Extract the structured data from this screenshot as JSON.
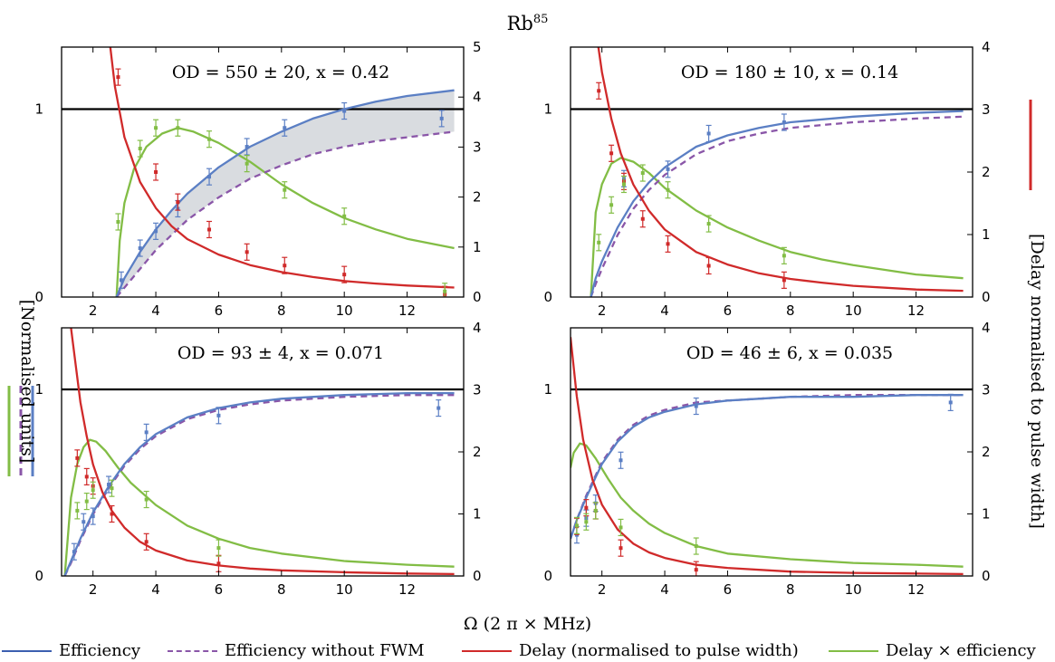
{
  "title": "Rb",
  "title_sup": "85",
  "xlabel": "Ω (2 π × MHz)",
  "ylabel_left": "[Normalised units]",
  "ylabel_right": "[Delay normalised to pulse width]",
  "colors": {
    "efficiency": "#5b7fc4",
    "efficiency_no_fwm": "#8a56a8",
    "delay": "#d02a2a",
    "delay_x_eff": "#82bd45",
    "shade": "#d9dce0",
    "unity": "#000000"
  },
  "legend": [
    {
      "key": "efficiency",
      "label": "Efficiency",
      "style": "solid"
    },
    {
      "key": "efficiency_no_fwm",
      "label": "Efficiency without FWM",
      "style": "dashed"
    },
    {
      "key": "delay",
      "label": "Delay (normalised to pulse width)",
      "style": "solid"
    },
    {
      "key": "delay_x_eff",
      "label": "Delay × efficiency",
      "style": "solid"
    }
  ],
  "chart_data": [
    {
      "type": "line",
      "panel": "top-left",
      "annotation": "OD = 550 ± 20, x = 0.42",
      "xlim": [
        1,
        13.8
      ],
      "ylim_left": [
        0,
        1.33
      ],
      "ylim_right": [
        0,
        5
      ],
      "xticks": [
        2,
        4,
        6,
        8,
        10,
        12
      ],
      "yticks_left": [
        0,
        1
      ],
      "yticks_right": [
        0,
        1,
        2,
        3,
        4,
        5
      ],
      "curves": {
        "efficiency": {
          "x": [
            2.75,
            3.0,
            3.5,
            4.0,
            4.5,
            5.0,
            6.0,
            7.0,
            8.0,
            9.0,
            10.0,
            11.0,
            12.0,
            13.5
          ],
          "y": [
            0.0,
            0.1,
            0.24,
            0.36,
            0.46,
            0.55,
            0.69,
            0.8,
            0.88,
            0.95,
            1.0,
            1.04,
            1.07,
            1.1
          ]
        },
        "efficiency_no_fwm": {
          "x": [
            2.75,
            3.0,
            3.5,
            4.0,
            5.0,
            6.0,
            7.0,
            8.0,
            9.0,
            10.0,
            11.0,
            12.0,
            13.5
          ],
          "y": [
            0.0,
            0.05,
            0.15,
            0.25,
            0.41,
            0.53,
            0.63,
            0.7,
            0.76,
            0.8,
            0.83,
            0.85,
            0.88
          ]
        },
        "delay": {
          "x": [
            2.55,
            2.7,
            3.0,
            3.5,
            4.0,
            4.5,
            5.0,
            6.0,
            7.0,
            8.0,
            9.0,
            10.0,
            11.0,
            12.0,
            13.5
          ],
          "y": [
            5.0,
            4.2,
            3.2,
            2.3,
            1.78,
            1.42,
            1.16,
            0.85,
            0.64,
            0.5,
            0.4,
            0.32,
            0.27,
            0.23,
            0.19
          ]
        },
        "delay_x_eff": {
          "x": [
            2.75,
            2.85,
            3.0,
            3.3,
            3.7,
            4.2,
            4.7,
            5.2,
            6.0,
            7.0,
            8.0,
            9.0,
            10.0,
            11.0,
            12.0,
            13.5
          ],
          "y": [
            0.0,
            0.3,
            0.5,
            0.68,
            0.8,
            0.87,
            0.9,
            0.88,
            0.82,
            0.72,
            0.6,
            0.5,
            0.42,
            0.36,
            0.31,
            0.26
          ]
        }
      },
      "points": {
        "efficiency": {
          "x": [
            2.9,
            3.5,
            4.0,
            4.7,
            5.7,
            6.9,
            8.1,
            10.0,
            13.1
          ],
          "y": [
            0.09,
            0.26,
            0.35,
            0.47,
            0.64,
            0.8,
            0.9,
            0.99,
            0.95
          ]
        },
        "delay": {
          "x": [
            2.8,
            4.0,
            4.7,
            5.7,
            6.9,
            8.1,
            10.0,
            13.2
          ],
          "y": [
            4.4,
            2.5,
            1.9,
            1.35,
            0.9,
            0.63,
            0.45,
            0.05
          ]
        },
        "delay_x_eff": {
          "x": [
            2.8,
            3.5,
            4.0,
            4.7,
            5.7,
            6.9,
            8.1,
            10.0,
            13.2
          ],
          "y": [
            0.4,
            0.79,
            0.9,
            0.9,
            0.84,
            0.71,
            0.57,
            0.43,
            0.03
          ]
        }
      }
    },
    {
      "type": "line",
      "panel": "top-right",
      "annotation": "OD = 180 ± 10, x = 0.14",
      "xlim": [
        1,
        13.8
      ],
      "ylim_left": [
        0,
        1.33
      ],
      "ylim_right": [
        0,
        4
      ],
      "xticks": [
        2,
        4,
        6,
        8,
        10,
        12
      ],
      "yticks_left": [
        0,
        1
      ],
      "yticks_right": [
        0,
        1,
        2,
        3,
        4
      ],
      "curves": {
        "efficiency": {
          "x": [
            1.65,
            1.8,
            2.0,
            2.5,
            3.0,
            3.5,
            4.0,
            5.0,
            6.0,
            7.0,
            8.0,
            10.0,
            12.0,
            13.5
          ],
          "y": [
            0.0,
            0.1,
            0.19,
            0.37,
            0.51,
            0.61,
            0.69,
            0.8,
            0.86,
            0.9,
            0.93,
            0.96,
            0.98,
            0.99
          ]
        },
        "efficiency_no_fwm": {
          "x": [
            1.65,
            1.8,
            2.0,
            2.5,
            3.0,
            3.5,
            4.0,
            5.0,
            6.0,
            7.0,
            8.0,
            10.0,
            12.0,
            13.5
          ],
          "y": [
            0.0,
            0.07,
            0.15,
            0.33,
            0.47,
            0.57,
            0.65,
            0.76,
            0.83,
            0.87,
            0.9,
            0.93,
            0.95,
            0.96
          ]
        },
        "delay": {
          "x": [
            1.8,
            2.0,
            2.3,
            2.6,
            3.0,
            3.5,
            4.0,
            5.0,
            6.0,
            7.0,
            8.0,
            9.0,
            10.0,
            12.0,
            13.5
          ],
          "y": [
            4.3,
            3.6,
            2.85,
            2.3,
            1.8,
            1.38,
            1.08,
            0.72,
            0.52,
            0.38,
            0.29,
            0.23,
            0.18,
            0.12,
            0.1
          ]
        },
        "delay_x_eff": {
          "x": [
            1.65,
            1.8,
            2.0,
            2.3,
            2.6,
            3.0,
            3.5,
            4.0,
            5.0,
            6.0,
            7.0,
            8.0,
            9.0,
            10.0,
            12.0,
            13.5
          ],
          "y": [
            0.0,
            0.45,
            0.6,
            0.71,
            0.74,
            0.72,
            0.66,
            0.58,
            0.46,
            0.37,
            0.3,
            0.24,
            0.2,
            0.17,
            0.12,
            0.1
          ]
        }
      },
      "points": {
        "efficiency": {
          "x": [
            2.7,
            4.1,
            5.4,
            7.8
          ],
          "y": [
            0.63,
            0.68,
            0.87,
            0.93
          ]
        },
        "delay": {
          "x": [
            1.9,
            2.3,
            2.7,
            3.3,
            4.1,
            5.4,
            7.8
          ],
          "y": [
            3.3,
            2.3,
            1.85,
            1.25,
            0.85,
            0.5,
            0.27
          ]
        },
        "delay_x_eff": {
          "x": [
            1.9,
            2.3,
            2.7,
            3.3,
            4.1,
            5.4,
            7.8
          ],
          "y": [
            0.29,
            0.49,
            0.6,
            0.66,
            0.57,
            0.39,
            0.22
          ]
        }
      }
    },
    {
      "type": "line",
      "panel": "bottom-left",
      "annotation": "OD = 93 ± 4, x = 0.071",
      "xlim": [
        1,
        13.8
      ],
      "ylim_left": [
        0,
        1.33
      ],
      "ylim_right": [
        0,
        4
      ],
      "xticks": [
        2,
        4,
        6,
        8,
        10,
        12
      ],
      "yticks_left": [
        0,
        1
      ],
      "yticks_right": [
        0,
        1,
        2,
        3,
        4
      ],
      "curves": {
        "efficiency": {
          "x": [
            1.1,
            1.3,
            1.6,
            2.0,
            2.5,
            3.0,
            3.5,
            4.0,
            5.0,
            6.0,
            7.0,
            8.0,
            10.0,
            12.0,
            13.5
          ],
          "y": [
            0.0,
            0.08,
            0.2,
            0.34,
            0.48,
            0.6,
            0.69,
            0.76,
            0.85,
            0.9,
            0.93,
            0.95,
            0.97,
            0.98,
            0.98
          ]
        },
        "efficiency_no_fwm": {
          "x": [
            1.1,
            1.3,
            1.6,
            2.0,
            2.5,
            3.0,
            3.5,
            4.0,
            5.0,
            6.0,
            7.0,
            8.0,
            10.0,
            12.0,
            13.5
          ],
          "y": [
            0.0,
            0.07,
            0.19,
            0.33,
            0.47,
            0.59,
            0.68,
            0.75,
            0.84,
            0.89,
            0.92,
            0.94,
            0.96,
            0.97,
            0.97
          ]
        },
        "delay": {
          "x": [
            1.3,
            1.45,
            1.6,
            1.8,
            2.0,
            2.3,
            2.6,
            3.0,
            3.5,
            4.0,
            5.0,
            6.0,
            7.0,
            8.0,
            10.0,
            12.0,
            13.5
          ],
          "y": [
            4.0,
            3.4,
            2.8,
            2.25,
            1.8,
            1.35,
            1.05,
            0.78,
            0.55,
            0.41,
            0.25,
            0.17,
            0.12,
            0.09,
            0.06,
            0.04,
            0.03
          ]
        },
        "delay_x_eff": {
          "x": [
            1.1,
            1.3,
            1.5,
            1.7,
            1.9,
            2.1,
            2.4,
            2.8,
            3.2,
            4.0,
            5.0,
            6.0,
            7.0,
            8.0,
            10.0,
            12.0,
            13.5
          ],
          "y": [
            0.0,
            0.42,
            0.6,
            0.69,
            0.73,
            0.72,
            0.67,
            0.58,
            0.5,
            0.38,
            0.27,
            0.2,
            0.15,
            0.12,
            0.08,
            0.06,
            0.05
          ]
        }
      },
      "points": {
        "efficiency": {
          "x": [
            1.4,
            1.7,
            2.0,
            2.5,
            3.7,
            6.0,
            13.0
          ],
          "y": [
            0.13,
            0.29,
            0.32,
            0.49,
            0.77,
            0.86,
            0.9
          ]
        },
        "delay": {
          "x": [
            1.5,
            1.8,
            2.0,
            2.6,
            3.7,
            6.0
          ],
          "y": [
            1.9,
            1.6,
            1.45,
            1.0,
            0.55,
            0.2
          ]
        },
        "delay_x_eff": {
          "x": [
            1.5,
            1.8,
            2.0,
            2.6,
            3.7,
            6.0
          ],
          "y": [
            0.35,
            0.4,
            0.46,
            0.47,
            0.41,
            0.15
          ]
        }
      }
    },
    {
      "type": "line",
      "panel": "bottom-right",
      "annotation": "OD = 46 ± 6, x = 0.035",
      "xlim": [
        1,
        13.8
      ],
      "ylim_left": [
        0,
        1.33
      ],
      "ylim_right": [
        0,
        4
      ],
      "xticks": [
        2,
        4,
        6,
        8,
        10,
        12
      ],
      "yticks_left": [
        0,
        1
      ],
      "yticks_right": [
        0,
        1,
        2,
        3,
        4
      ],
      "curves": {
        "efficiency": {
          "x": [
            1.0,
            1.2,
            1.5,
            1.8,
            2.0,
            2.5,
            3.0,
            3.5,
            4.0,
            5.0,
            6.0,
            7.0,
            8.0,
            10.0,
            12.0,
            13.5
          ],
          "y": [
            0.2,
            0.3,
            0.42,
            0.53,
            0.6,
            0.72,
            0.8,
            0.85,
            0.88,
            0.92,
            0.94,
            0.95,
            0.96,
            0.96,
            0.97,
            0.97
          ]
        },
        "efficiency_no_fwm": {
          "x": [
            1.0,
            1.2,
            1.5,
            1.8,
            2.0,
            2.5,
            3.0,
            3.5,
            4.0,
            5.0,
            6.0,
            7.0,
            8.0,
            10.0,
            12.0,
            13.5
          ],
          "y": [
            0.2,
            0.3,
            0.43,
            0.54,
            0.61,
            0.73,
            0.81,
            0.86,
            0.89,
            0.93,
            0.94,
            0.95,
            0.96,
            0.97,
            0.97,
            0.97
          ]
        },
        "delay": {
          "x": [
            1.0,
            1.2,
            1.4,
            1.7,
            2.0,
            2.5,
            3.0,
            3.5,
            4.0,
            5.0,
            6.0,
            8.0,
            10.0,
            12.0,
            13.5
          ],
          "y": [
            3.85,
            2.9,
            2.2,
            1.55,
            1.15,
            0.75,
            0.52,
            0.38,
            0.29,
            0.18,
            0.13,
            0.07,
            0.05,
            0.04,
            0.03
          ]
        },
        "delay_x_eff": {
          "x": [
            1.0,
            1.1,
            1.3,
            1.5,
            1.8,
            2.2,
            2.6,
            3.0,
            3.5,
            4.0,
            5.0,
            6.0,
            8.0,
            10.0,
            12.0,
            13.5
          ],
          "y": [
            0.58,
            0.66,
            0.71,
            0.7,
            0.63,
            0.52,
            0.42,
            0.35,
            0.28,
            0.23,
            0.16,
            0.12,
            0.09,
            0.07,
            0.06,
            0.05
          ]
        }
      },
      "points": {
        "efficiency": {
          "x": [
            1.2,
            1.5,
            1.8,
            2.6,
            5.0,
            13.1
          ],
          "y": [
            0.22,
            0.31,
            0.39,
            0.62,
            0.91,
            0.93
          ]
        },
        "delay": {
          "x": [
            1.2,
            1.5,
            1.8,
            2.6,
            5.0
          ],
          "y": [
            0.8,
            1.1,
            1.05,
            0.45,
            0.1
          ]
        },
        "delay_x_eff": {
          "x": [
            1.2,
            1.5,
            1.8,
            2.6,
            5.0
          ],
          "y": [
            0.27,
            0.29,
            0.35,
            0.26,
            0.16
          ]
        }
      }
    }
  ]
}
